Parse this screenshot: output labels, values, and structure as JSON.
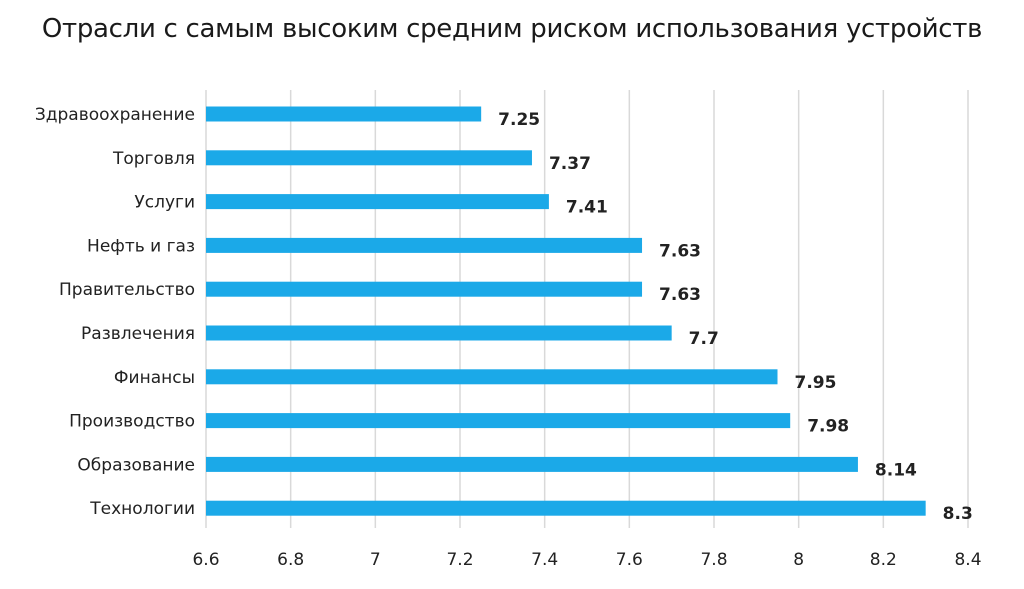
{
  "chart_data": {
    "type": "bar",
    "orientation": "horizontal",
    "title": "Отрасли с самым высоким средним риском использования устройств",
    "categories": [
      "Здравоохранение",
      "Торговля",
      "Услуги",
      "Нефть и газ",
      "Правительство",
      "Развлечения",
      "Финансы",
      "Производство",
      "Образование",
      "Технологии"
    ],
    "values": [
      7.25,
      7.37,
      7.41,
      7.63,
      7.63,
      7.7,
      7.95,
      7.98,
      8.14,
      8.3
    ],
    "value_labels": [
      "7.25",
      "7.37",
      "7.41",
      "7.63",
      "7.63",
      "7.7",
      "7.95",
      "7.98",
      "8.14",
      "8.3"
    ],
    "xlim": [
      6.6,
      8.4
    ],
    "xticks": [
      "6.6",
      "6.8",
      "7",
      "7.2",
      "7.4",
      "7.6",
      "7.8",
      "8",
      "8.2",
      "8.4"
    ],
    "xlabel": "",
    "ylabel": "",
    "grid": "vertical",
    "bar_color": "#1ba9e8",
    "grid_color": "#d9d9d9"
  }
}
